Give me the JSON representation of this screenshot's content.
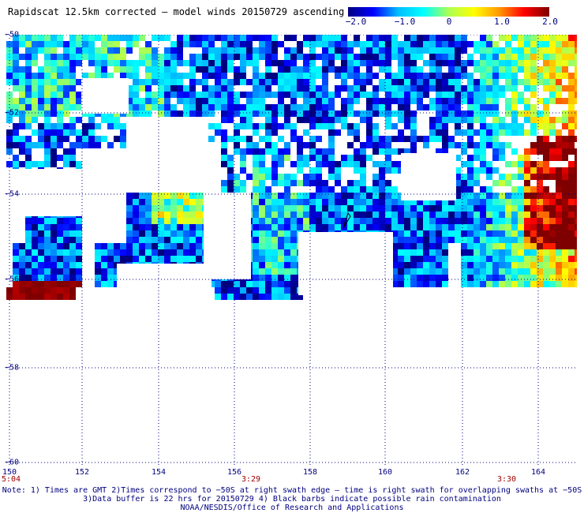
{
  "title": "Rapidscat 12.5km corrected – model winds 20150729 ascending",
  "colorbar": {
    "tick_labels": [
      "−2.0",
      "−1.0",
      "0",
      "1.0",
      "2.0"
    ],
    "range": [
      -2.0,
      2.0
    ],
    "colors": [
      "#00007f",
      "#0000ff",
      "#00bfff",
      "#00ffff",
      "#aaff55",
      "#ffff00",
      "#ff9900",
      "#ff0000",
      "#7f0000"
    ]
  },
  "axes": {
    "lon_ticks": [
      "150",
      "152",
      "154",
      "156",
      "158",
      "160",
      "162",
      "164"
    ],
    "lat_ticks": [
      "−50",
      "−52",
      "−54",
      "−56",
      "−58",
      "−60"
    ]
  },
  "time_labels": [
    "5:04",
    "3:29",
    "3:30"
  ],
  "notes": [
    "Note: 1) Times are GMT 2)Times correspond to −50S at right swath edge – time is right swath for overlapping swaths at −50S",
    "3)Data buffer is 22 hrs for 20150729 4) Black barbs indicate possible rain contamination",
    "NOAA/NESDIS/Office of Research and Applications"
  ]
}
